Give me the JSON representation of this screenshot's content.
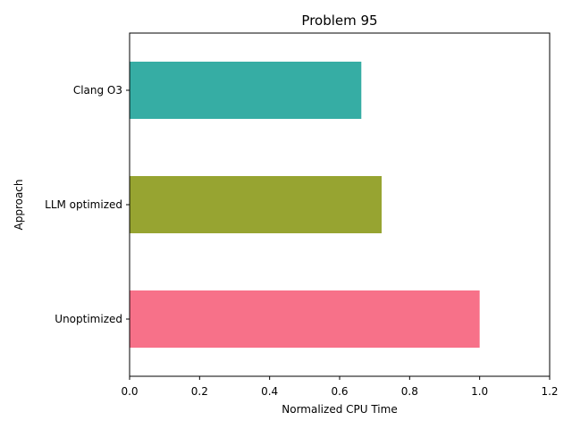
{
  "chart_data": {
    "type": "bar",
    "orientation": "horizontal",
    "title": "Problem 95",
    "xlabel": "Normalized CPU Time",
    "ylabel": "Approach",
    "categories": [
      "Unoptimized",
      "LLM optimized",
      "Clang O3"
    ],
    "values": [
      1.0,
      0.72,
      0.662
    ],
    "colors": [
      "#f77189",
      "#97a431",
      "#36ada4"
    ],
    "xlim": [
      0,
      1.2
    ],
    "xticks": [
      0.0,
      0.2,
      0.4,
      0.6,
      0.8,
      1.0,
      1.2
    ],
    "xtick_labels": [
      "0.0",
      "0.2",
      "0.4",
      "0.6",
      "0.8",
      "1.0",
      "1.2"
    ],
    "grid": false,
    "legend": "none"
  }
}
